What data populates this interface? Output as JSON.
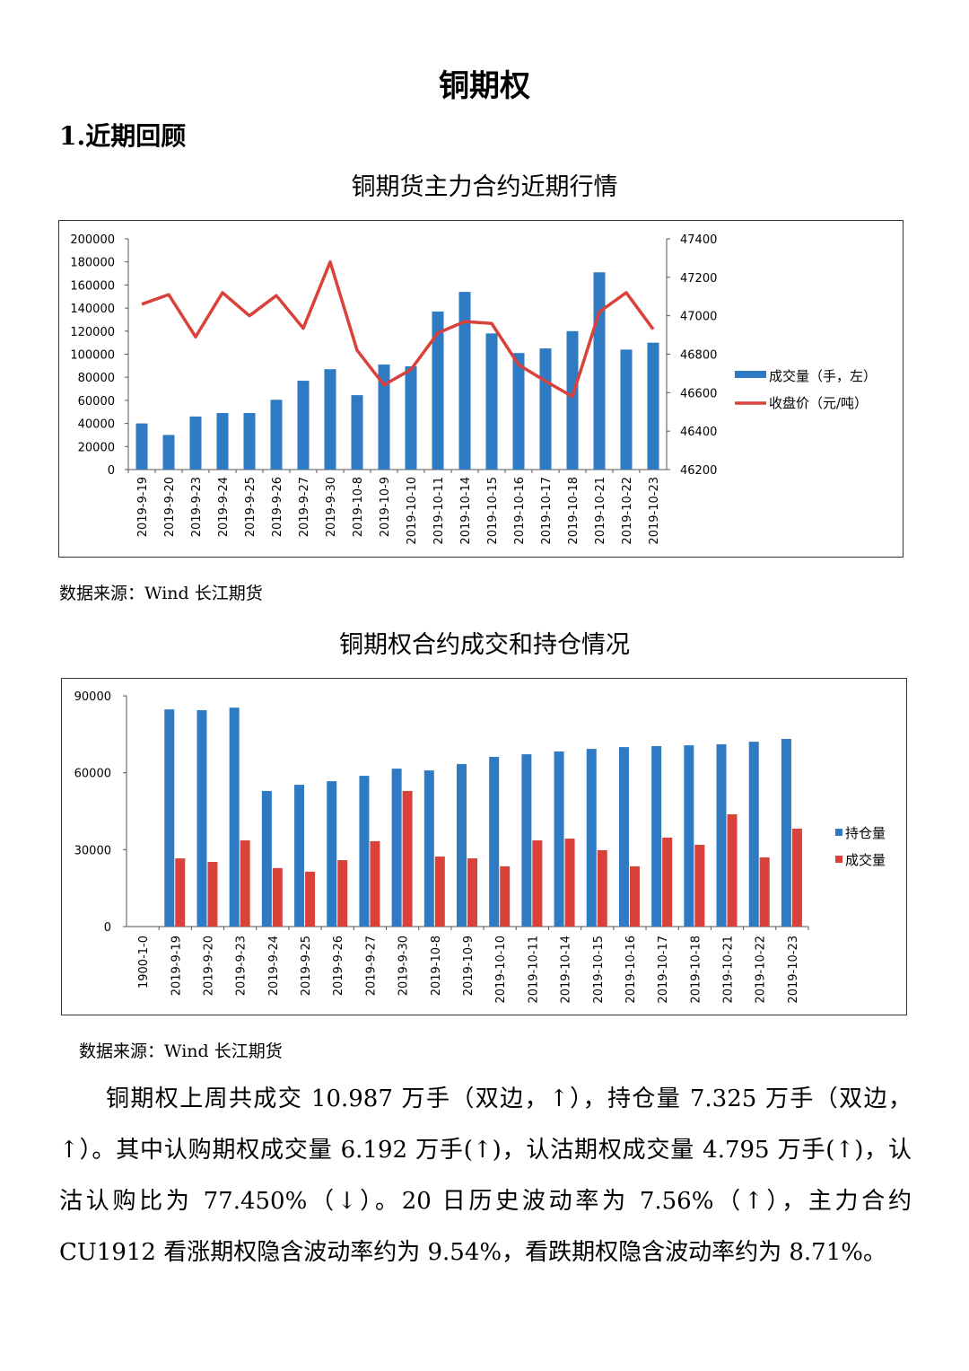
{
  "title": "铜期权",
  "section": "1.近期回顾",
  "colors": {
    "blue": "#2e7bc4",
    "red": "#d9413a"
  },
  "chart_data": [
    {
      "type": "bar+line",
      "title": "铜期货主力合约近期行情",
      "categories": [
        "2019-9-19",
        "2019-9-20",
        "2019-9-23",
        "2019-9-24",
        "2019-9-25",
        "2019-9-26",
        "2019-9-27",
        "2019-9-30",
        "2019-10-8",
        "2019-10-9",
        "2019-10-10",
        "2019-10-11",
        "2019-10-14",
        "2019-10-15",
        "2019-10-16",
        "2019-10-17",
        "2019-10-18",
        "2019-10-21",
        "2019-10-22",
        "2019-10-23"
      ],
      "series": [
        {
          "name": "成交量（手，左）",
          "type": "bar",
          "axis": "left",
          "values": [
            40000,
            30000,
            46000,
            49000,
            49000,
            60500,
            77000,
            87000,
            64500,
            91000,
            89500,
            137000,
            154000,
            118000,
            101000,
            105000,
            120000,
            171000,
            104000,
            110000
          ]
        },
        {
          "name": "收盘价（元/吨）",
          "type": "line",
          "axis": "right",
          "values": [
            47060,
            47110,
            46890,
            47120,
            47000,
            47105,
            46935,
            47280,
            46820,
            46640,
            46720,
            46910,
            46970,
            46960,
            46745,
            46660,
            46580,
            47020,
            47120,
            46930
          ]
        }
      ],
      "ylim_left": [
        0,
        200000
      ],
      "yticks_left": [
        "0",
        "20000",
        "40000",
        "60000",
        "80000",
        "100000",
        "120000",
        "140000",
        "160000",
        "180000",
        "200000"
      ],
      "ylim_right": [
        46200,
        47400
      ],
      "yticks_right": [
        "46200",
        "46400",
        "46600",
        "46800",
        "47000",
        "47200",
        "47400"
      ],
      "legend": "right",
      "grid": false
    },
    {
      "type": "bar",
      "title": "铜期权合约成交和持仓情况",
      "categories": [
        "1900-1-0",
        "2019-9-19",
        "2019-9-20",
        "2019-9-23",
        "2019-9-24",
        "2019-9-25",
        "2019-9-26",
        "2019-9-27",
        "2019-9-30",
        "2019-10-8",
        "2019-10-9",
        "2019-10-10",
        "2019-10-11",
        "2019-10-14",
        "2019-10-15",
        "2019-10-16",
        "2019-10-17",
        "2019-10-18",
        "2019-10-21",
        "2019-10-22",
        "2019-10-23"
      ],
      "series": [
        {
          "name": "持仓量",
          "values": [
            null,
            84700,
            84400,
            85400,
            52900,
            55300,
            56700,
            58800,
            61600,
            60900,
            63400,
            66200,
            67200,
            68300,
            69300,
            70000,
            70400,
            70700,
            71100,
            72100,
            73200
          ]
        },
        {
          "name": "成交量",
          "values": [
            null,
            26600,
            25200,
            33600,
            22800,
            21400,
            25900,
            33300,
            52900,
            27300,
            26600,
            23500,
            33600,
            34300,
            29800,
            23500,
            34700,
            31900,
            43800,
            27000,
            38200
          ]
        }
      ],
      "ylim": [
        0,
        90000
      ],
      "yticks": [
        "0",
        "30000",
        "60000",
        "90000"
      ],
      "legend": "right",
      "grid": false
    }
  ],
  "source1": "数据来源：Wind  长江期货",
  "source2": "数据来源：Wind  长江期货",
  "paragraph": "铜期权上周共成交 10.987 万手（双边，↑），持仓量 7.325 万手（双边，↑）。其中认购期权成交量 6.192 万手(↑)，认沽期权成交量 4.795 万手(↑)，认沽认购比为 77.450%（↓）。20 日历史波动率为 7.56%（↑），主力合约 CU1912 看涨期权隐含波动率约为 9.54%，看跌期权隐含波动率约为 8.71%。"
}
